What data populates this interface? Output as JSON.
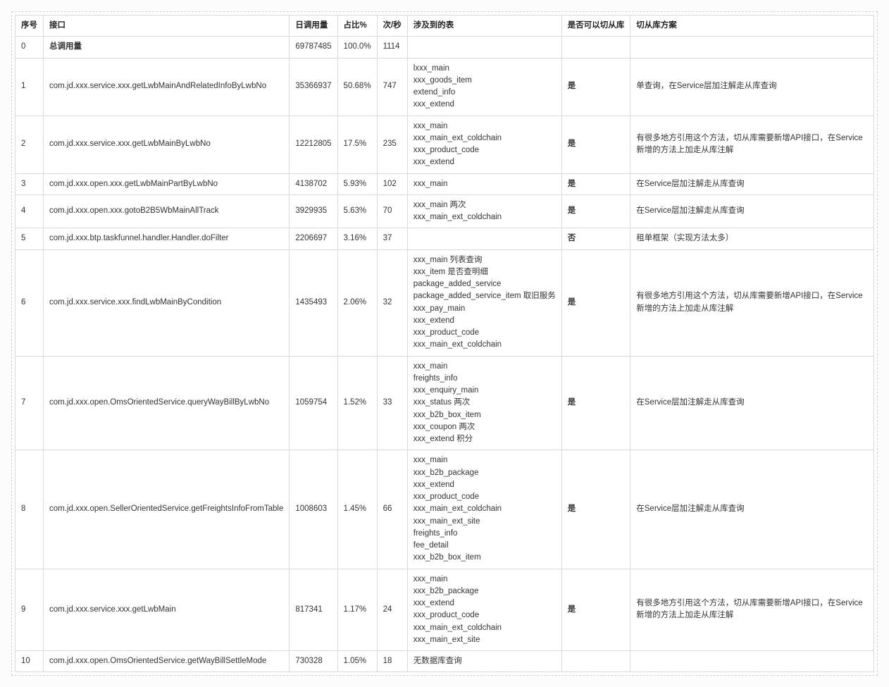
{
  "columns": [
    "序号",
    "接口",
    "日调用量",
    "占比%",
    "次/秒",
    "涉及到的表",
    "是否可以切从库",
    "切从库方案"
  ],
  "rows": [
    {
      "seq": "0",
      "name": "总调用量",
      "daily": "69787485",
      "ratio": "100.0%",
      "persec": "1114",
      "tables": [],
      "can": "",
      "plan": ""
    },
    {
      "seq": "1",
      "name": "com.jd.xxx.service.xxx.getLwbMainAndRelatedInfoByLwbNo",
      "daily": "35366937",
      "ratio": "50.68%",
      "persec": "747",
      "tables": [
        "lxxx_main",
        "xxx_goods_item",
        "extend_info",
        "xxx_extend"
      ],
      "can": "是",
      "plan": "单查询，在Service层加注解走从库查询"
    },
    {
      "seq": "2",
      "name": "com.jd.xxx.service.xxx.getLwbMainByLwbNo",
      "daily": "12212805",
      "ratio": "17.5%",
      "persec": "235",
      "tables": [
        "xxx_main",
        "xxx_main_ext_coldchain",
        "xxx_product_code",
        "xxx_extend"
      ],
      "can": "是",
      "plan": "有很多地方引用这个方法，切从库需要新增API接口，在Service新增的方法上加走从库注解"
    },
    {
      "seq": "3",
      "name": "com.jd.xxx.open.xxx.getLwbMainPartByLwbNo",
      "daily": "4138702",
      "ratio": "5.93%",
      "persec": "102",
      "tables": [
        "xxx_main"
      ],
      "can": "是",
      "plan": "在Service层加注解走从库查询"
    },
    {
      "seq": "4",
      "name": "com.jd.xxx.open.xxx.gotoB2B5WbMainAllTrack",
      "daily": "3929935",
      "ratio": "5.63%",
      "persec": "70",
      "tables": [
        "xxx_main 两次",
        "xxx_main_ext_coldchain"
      ],
      "can": "是",
      "plan": "在Service层加注解走从库查询"
    },
    {
      "seq": "5",
      "name": "com.jd.xxx.btp.taskfunnel.handler.Handler.doFilter",
      "daily": "2206697",
      "ratio": "3.16%",
      "persec": "37",
      "tables": [],
      "can": "否",
      "plan": "租单框架（实现方法太多）"
    },
    {
      "seq": "6",
      "name": "com.jd.xxx.service.xxx.findLwbMainByCondition",
      "daily": "1435493",
      "ratio": "2.06%",
      "persec": "32",
      "tables": [
        "xxx_main 列表查询",
        "xxx_item 是否查明细",
        "package_added_service",
        "package_added_service_item 取旧服务",
        "xxx_pay_main",
        "xxx_extend",
        "xxx_product_code",
        "xxx_main_ext_coldchain"
      ],
      "can": "是",
      "plan": "有很多地方引用这个方法，切从库需要新增API接口，在Service新增的方法上加走从库注解"
    },
    {
      "seq": "7",
      "name": "com.jd.xxx.open.OmsOrientedService.queryWayBillByLwbNo",
      "daily": "1059754",
      "ratio": "1.52%",
      "persec": "33",
      "tables": [
        "xxx_main",
        "freights_info",
        "xxx_enquiry_main",
        "xxx_status 两次",
        "xxx_b2b_box_item",
        "xxx_coupon 两次",
        "xxx_extend 积分"
      ],
      "can": "是",
      "plan": "在Service层加注解走从库查询"
    },
    {
      "seq": "8",
      "name": "com.jd.xxx.open.SellerOrientedService.getFreightsInfoFromTable",
      "daily": "1008603",
      "ratio": "1.45%",
      "persec": "66",
      "tables": [
        "xxx_main",
        "xxx_b2b_package",
        "xxx_extend",
        "xxx_product_code",
        "xxx_main_ext_coldchain",
        "xxx_main_ext_site",
        "freights_info",
        "fee_detail",
        "xxx_b2b_box_item"
      ],
      "can": "是",
      "plan": "在Service层加注解走从库查询"
    },
    {
      "seq": "9",
      "name": "com.jd.xxx.service.xxx.getLwbMain",
      "daily": "817341",
      "ratio": "1.17%",
      "persec": "24",
      "tables": [
        "xxx_main",
        "xxx_b2b_package",
        "xxx_extend",
        "xxx_product_code",
        "xxx_main_ext_coldchain",
        "xxx_main_ext_site"
      ],
      "can": "是",
      "plan": "有很多地方引用这个方法，切从库需要新增API接口，在Service新增的方法上加走从库注解"
    },
    {
      "seq": "10",
      "name": "com.jd.xxx.open.OmsOrientedService.getWayBillSettleMode",
      "daily": "730328",
      "ratio": "1.05%",
      "persec": "18",
      "tables": [
        "无数据库查询"
      ],
      "can": "",
      "plan": ""
    }
  ]
}
